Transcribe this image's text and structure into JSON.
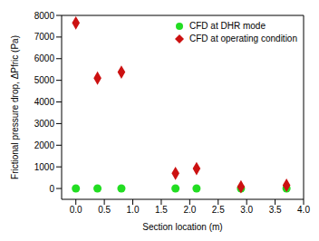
{
  "chart_data": {
    "type": "scatter",
    "x_label": "Section location (m)",
    "y_label": "Frictional pressure drop, ΔPfric (Pa)",
    "xlim": [
      -0.25,
      4.0
    ],
    "ylim": [
      -500,
      8000
    ],
    "xticks": [
      {
        "value": 0,
        "label": "0.0"
      },
      {
        "value": 0.5,
        "label": "0.5"
      },
      {
        "value": 1,
        "label": "1.0"
      },
      {
        "value": 1.5,
        "label": "1.5"
      },
      {
        "value": 2,
        "label": "2.0"
      },
      {
        "value": 2.5,
        "label": "2.5"
      },
      {
        "value": 3,
        "label": "3.0"
      },
      {
        "value": 3.5,
        "label": "3.5"
      },
      {
        "value": 4,
        "label": "4.0"
      }
    ],
    "yticks": [
      0,
      1000,
      2000,
      3000,
      4000,
      5000,
      6000,
      7000,
      8000
    ],
    "legend": "upper right",
    "series": [
      {
        "name": "CFD at DHR mode",
        "color": "#22dd22",
        "marker": "circle",
        "x": [
          0.0,
          0.38,
          0.8,
          1.75,
          2.12,
          2.9,
          3.7
        ],
        "values": [
          0,
          0,
          0,
          0,
          0,
          0,
          0
        ]
      },
      {
        "name": "CFD at operating condition",
        "color": "#cc1111",
        "marker": "diamond",
        "x": [
          0.0,
          0.38,
          0.8,
          1.75,
          2.12,
          2.9,
          3.7
        ],
        "values": [
          7650,
          5100,
          5380,
          700,
          920,
          80,
          150
        ]
      }
    ]
  }
}
